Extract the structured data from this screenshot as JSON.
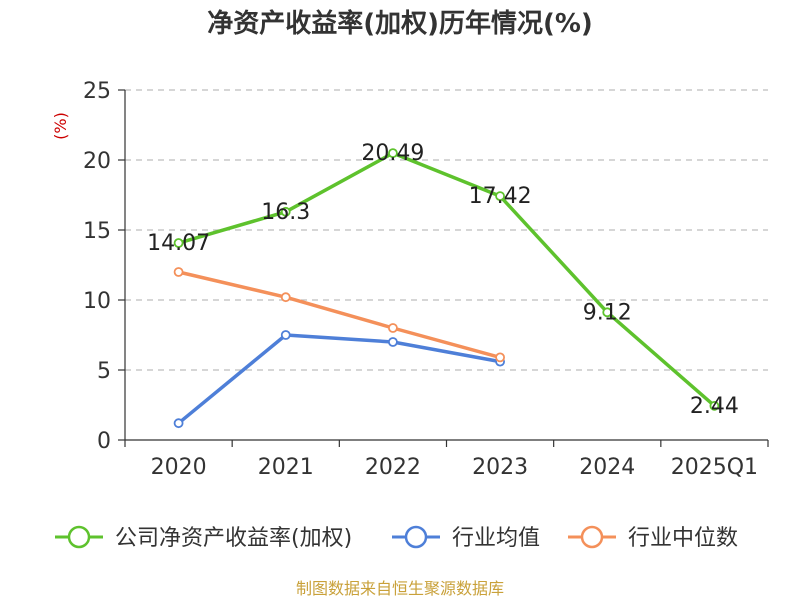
{
  "chart_data": {
    "type": "line",
    "title": "净资产收益率(加权)历年情况(%)",
    "ylabel": "(%)",
    "categories": [
      "2020",
      "2021",
      "2022",
      "2023",
      "2024",
      "2025Q1"
    ],
    "ylim": [
      0,
      25
    ],
    "yticks": [
      0,
      5,
      10,
      15,
      20,
      25
    ],
    "grid": true,
    "legend_position": "bottom",
    "series": [
      {
        "name": "公司净资产收益率(加权)",
        "color": "#5ec22d",
        "values": [
          14.07,
          16.3,
          20.49,
          17.42,
          9.12,
          2.44
        ],
        "labels": [
          "14.07",
          "16.3",
          "20.49",
          "17.42",
          "9.12",
          "2.44"
        ]
      },
      {
        "name": "行业均值",
        "color": "#4e7fd8",
        "values": [
          1.2,
          7.5,
          7.0,
          5.6,
          null,
          null
        ]
      },
      {
        "name": "行业中位数",
        "color": "#f4905a",
        "values": [
          12.0,
          10.2,
          8.0,
          5.9,
          null,
          null
        ]
      }
    ]
  },
  "footer": {
    "source": "制图数据来自恒生聚源数据库"
  }
}
